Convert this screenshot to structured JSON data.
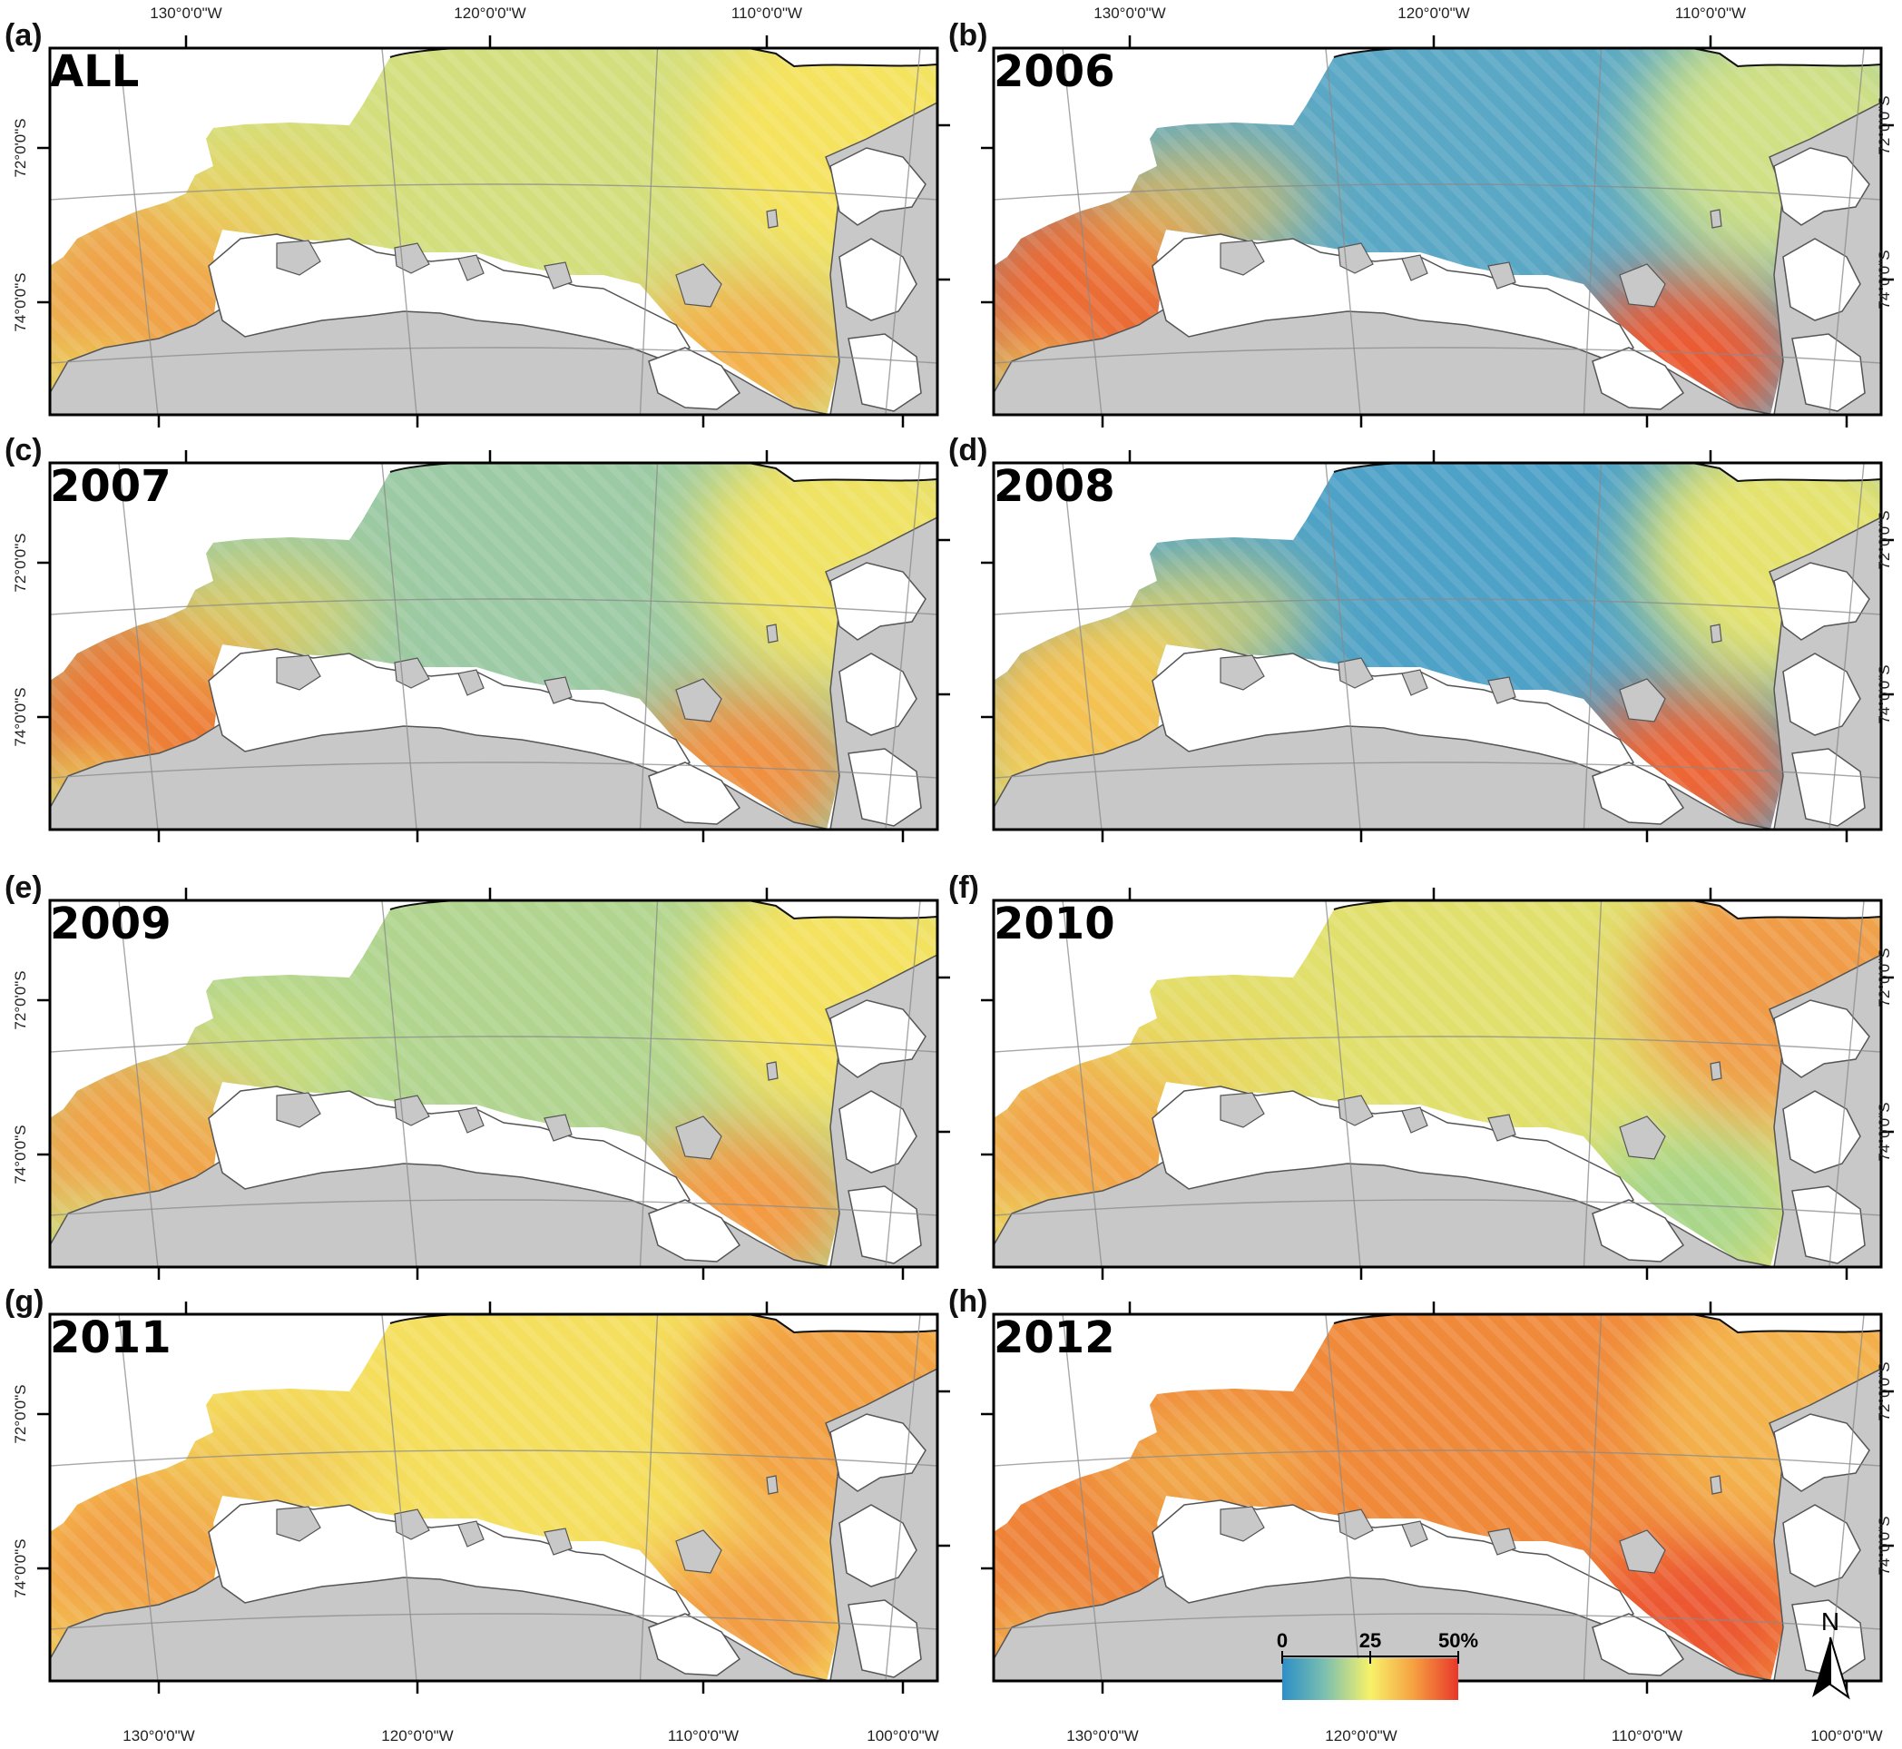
{
  "figure": {
    "panels": [
      {
        "label": "(a)",
        "title": "ALL",
        "palette": {
          "west": "#f0a24a",
          "west_edge": "#e9d35c",
          "center": "#d3df7e",
          "east": "#f5e35f",
          "south": "#f3b14c"
        }
      },
      {
        "label": "(b)",
        "title": "2006",
        "palette": {
          "west": "#ea6a34",
          "west_edge": "#e8c25a",
          "center": "#5aa8c6",
          "east": "#cfe085",
          "south": "#ec5a30"
        }
      },
      {
        "label": "(c)",
        "title": "2007",
        "palette": {
          "west": "#ec7a36",
          "west_edge": "#e7d15c",
          "center": "#9bcaa4",
          "east": "#f0e264",
          "south": "#f09040"
        }
      },
      {
        "label": "(d)",
        "title": "2008",
        "palette": {
          "west": "#f3c153",
          "west_edge": "#ecd860",
          "center": "#4ea2c8",
          "east": "#e5e36e",
          "south": "#ee6535"
        }
      },
      {
        "label": "(e)",
        "title": "2009",
        "palette": {
          "west": "#f1a347",
          "west_edge": "#cfe07a",
          "center": "#b1d590",
          "east": "#f4e25e",
          "south": "#f39a43"
        }
      },
      {
        "label": "(f)",
        "title": "2010",
        "palette": {
          "west": "#f2a448",
          "west_edge": "#e9d75e",
          "center": "#e1e06e",
          "east": "#f09b46",
          "south": "#a7d58a"
        }
      },
      {
        "label": "(g)",
        "title": "2011",
        "palette": {
          "west": "#f2a044",
          "west_edge": "#f0c456",
          "center": "#f5df5e",
          "east": "#f2a043",
          "south": "#f29d44"
        }
      },
      {
        "label": "(h)",
        "title": "2012",
        "palette": {
          "west": "#ee8238",
          "west_edge": "#f1b34d",
          "center": "#f08a3b",
          "east": "#f3b34e",
          "south": "#eb5630"
        }
      }
    ],
    "top_axis_labels": [
      "130°0'0\"W",
      "120°0'0\"W",
      "110°0'0\"W"
    ],
    "bottom_axis_labels": [
      "130°0'0\"W",
      "120°0'0\"W",
      "110°0'0\"W",
      "100°0'0\"W"
    ],
    "left_axis_labels": [
      "72°0'0\"S",
      "74°0'0\"S"
    ],
    "legend": {
      "ticks": [
        "0",
        "25",
        "50%"
      ],
      "stops": [
        {
          "value": 0,
          "color": "#2c8fc6"
        },
        {
          "value": 12,
          "color": "#7bbfb0"
        },
        {
          "value": 25,
          "color": "#f7f26a"
        },
        {
          "value": 37,
          "color": "#f6a342"
        },
        {
          "value": 50,
          "color": "#e8372a"
        }
      ],
      "min": 0,
      "max": 50
    },
    "north_arrow": {
      "label": "N"
    },
    "colors": {
      "land": "#c8c8c8",
      "ice_shelf": "#ffffff",
      "coast": "#555555",
      "grid": "#8a8a8a"
    }
  }
}
